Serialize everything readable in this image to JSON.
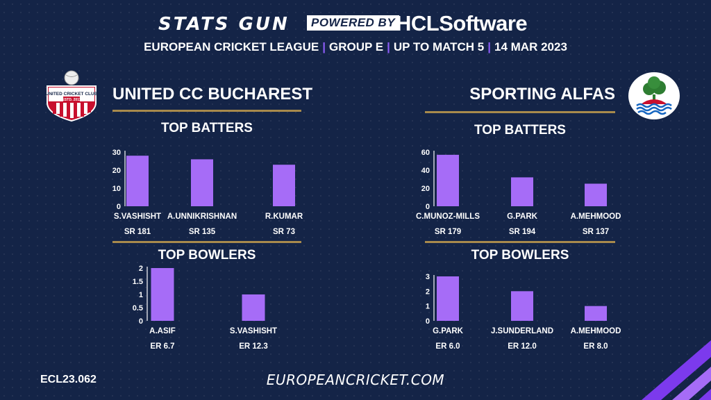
{
  "header": {
    "brand": "STATS GUN",
    "powered_by": "POWERED BY",
    "sponsor": "HCLSoftware",
    "league": "EUROPEAN CRICKET LEAGUE",
    "group": "GROUP  E",
    "upto": "UP TO MATCH  5",
    "date": "14 MAR 2023"
  },
  "teams": {
    "left": {
      "name": "UNITED CC BUCHAREST",
      "logo_text": "UNITED CRICKET CLUB",
      "logo_year": "ESTD. 2011"
    },
    "right": {
      "name": "SPORTING ALFAS"
    }
  },
  "sections": {
    "batters": "TOP BATTERS",
    "bowlers": "TOP BOWLERS"
  },
  "footer": {
    "code": "ECL23.062",
    "site": "EUROPEANCRICKET.COM"
  },
  "colors": {
    "background": "#142447",
    "bar": "#a66cf7",
    "accent_line": "#a88a4c",
    "separator": "#8b5cf6"
  },
  "chart_data": [
    {
      "type": "bar",
      "title": "TOP BATTERS",
      "team": "UNITED CC BUCHAREST",
      "categories": [
        "S.VASHISHT",
        "A.UNNIKRISHNAN",
        "R.KUMAR"
      ],
      "values": [
        28,
        26,
        23
      ],
      "sublabels": [
        "SR 181",
        "SR 135",
        "SR 73"
      ],
      "yticks": [
        "0",
        "10",
        "20",
        "30"
      ],
      "ylim": [
        0,
        30
      ]
    },
    {
      "type": "bar",
      "title": "TOP BOWLERS",
      "team": "UNITED CC BUCHAREST",
      "categories": [
        "A.ASIF",
        "S.VASHISHT"
      ],
      "values": [
        2,
        1
      ],
      "sublabels": [
        "ER 6.7",
        "ER 12.3"
      ],
      "yticks": [
        "0",
        "0.5",
        "1",
        "1.5",
        "2"
      ],
      "ylim": [
        0,
        2
      ]
    },
    {
      "type": "bar",
      "title": "TOP BATTERS",
      "team": "SPORTING ALFAS",
      "categories": [
        "C.MUNOZ-MILLS",
        "G.PARK",
        "A.MEHMOOD"
      ],
      "values": [
        57,
        32,
        25
      ],
      "sublabels": [
        "SR 179",
        "SR 194",
        "SR 137"
      ],
      "yticks": [
        "0",
        "20",
        "40",
        "60"
      ],
      "ylim": [
        0,
        60
      ]
    },
    {
      "type": "bar",
      "title": "TOP BOWLERS",
      "team": "SPORTING ALFAS",
      "categories": [
        "G.PARK",
        "J.SUNDERLAND",
        "A.MEHMOOD"
      ],
      "values": [
        3,
        2,
        1
      ],
      "sublabels": [
        "ER 6.0",
        "ER 12.0",
        "ER 8.0"
      ],
      "yticks": [
        "0",
        "1",
        "2",
        "3"
      ],
      "ylim": [
        0,
        3
      ]
    }
  ]
}
